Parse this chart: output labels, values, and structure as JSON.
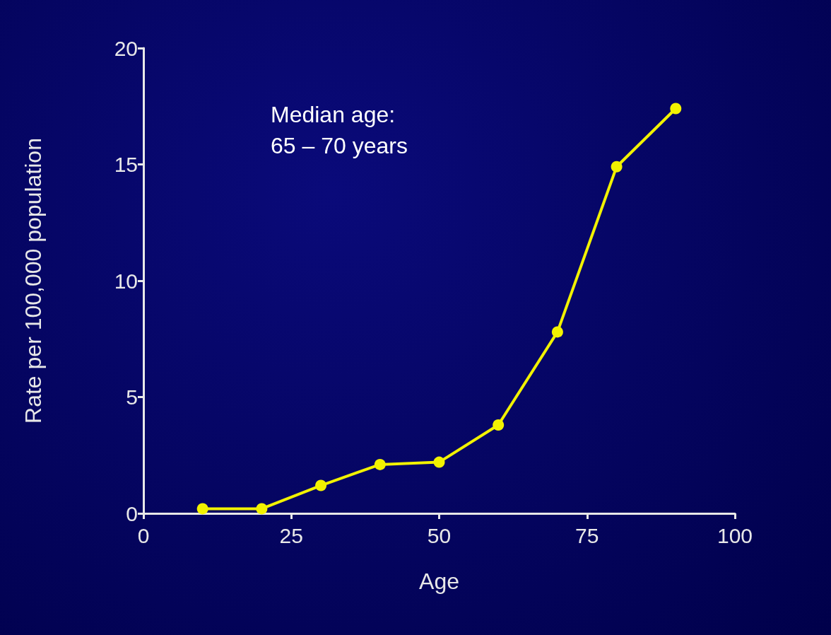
{
  "chart_data": {
    "type": "line",
    "xlabel": "Age",
    "ylabel": "Rate per 100,000 population",
    "annotations": [
      "Median age:\n65 – 70 years"
    ],
    "x": [
      10,
      20,
      30,
      40,
      50,
      60,
      70,
      80,
      90
    ],
    "series": [
      {
        "color": "#f2f200",
        "values": [
          0.2,
          0.2,
          1.2,
          2.1,
          2.2,
          3.8,
          7.8,
          14.9,
          17.4
        ]
      }
    ],
    "xlim": [
      0,
      100
    ],
    "xticks": [
      0,
      25,
      50,
      75,
      100
    ],
    "ylim": [
      0,
      20
    ],
    "yticks": [
      0,
      5,
      10,
      15,
      20
    ],
    "grid": false,
    "marker": "circle",
    "line_style": "solid"
  }
}
